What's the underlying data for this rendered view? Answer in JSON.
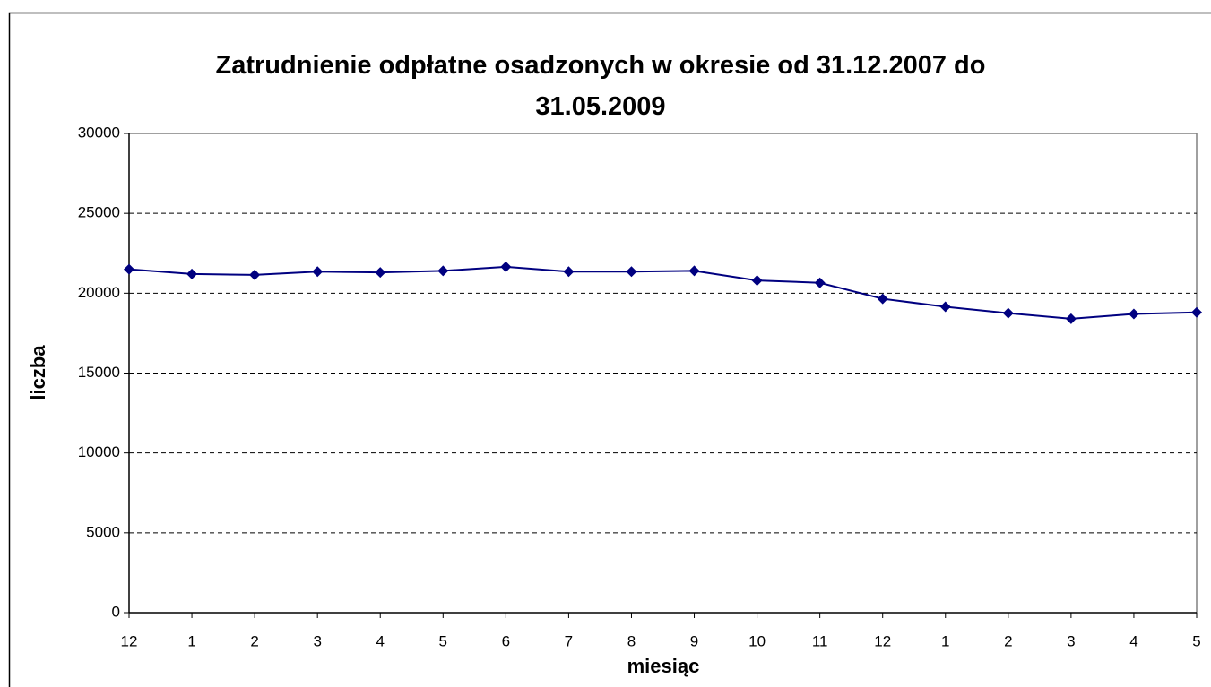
{
  "chart_data": {
    "type": "line",
    "title": "Zatrudnienie odpłatne osadzonych w okresie od 31.12.2007 do 31.05.2009",
    "x_label": "miesiąc",
    "y_label": "liczba",
    "categories": [
      "12",
      "1",
      "2",
      "3",
      "4",
      "5",
      "6",
      "7",
      "8",
      "9",
      "10",
      "11",
      "12",
      "1",
      "2",
      "3",
      "4",
      "5"
    ],
    "series": [
      {
        "name": "liczba",
        "color": "#000080",
        "values": [
          21500,
          21200,
          21150,
          21350,
          21300,
          21400,
          21650,
          21350,
          21350,
          21400,
          20800,
          20650,
          19650,
          19150,
          18750,
          18400,
          18700,
          18800
        ]
      }
    ],
    "ylim": [
      0,
      30000
    ],
    "yticks": [
      0,
      5000,
      10000,
      15000,
      20000,
      25000,
      30000
    ],
    "grid": true
  }
}
